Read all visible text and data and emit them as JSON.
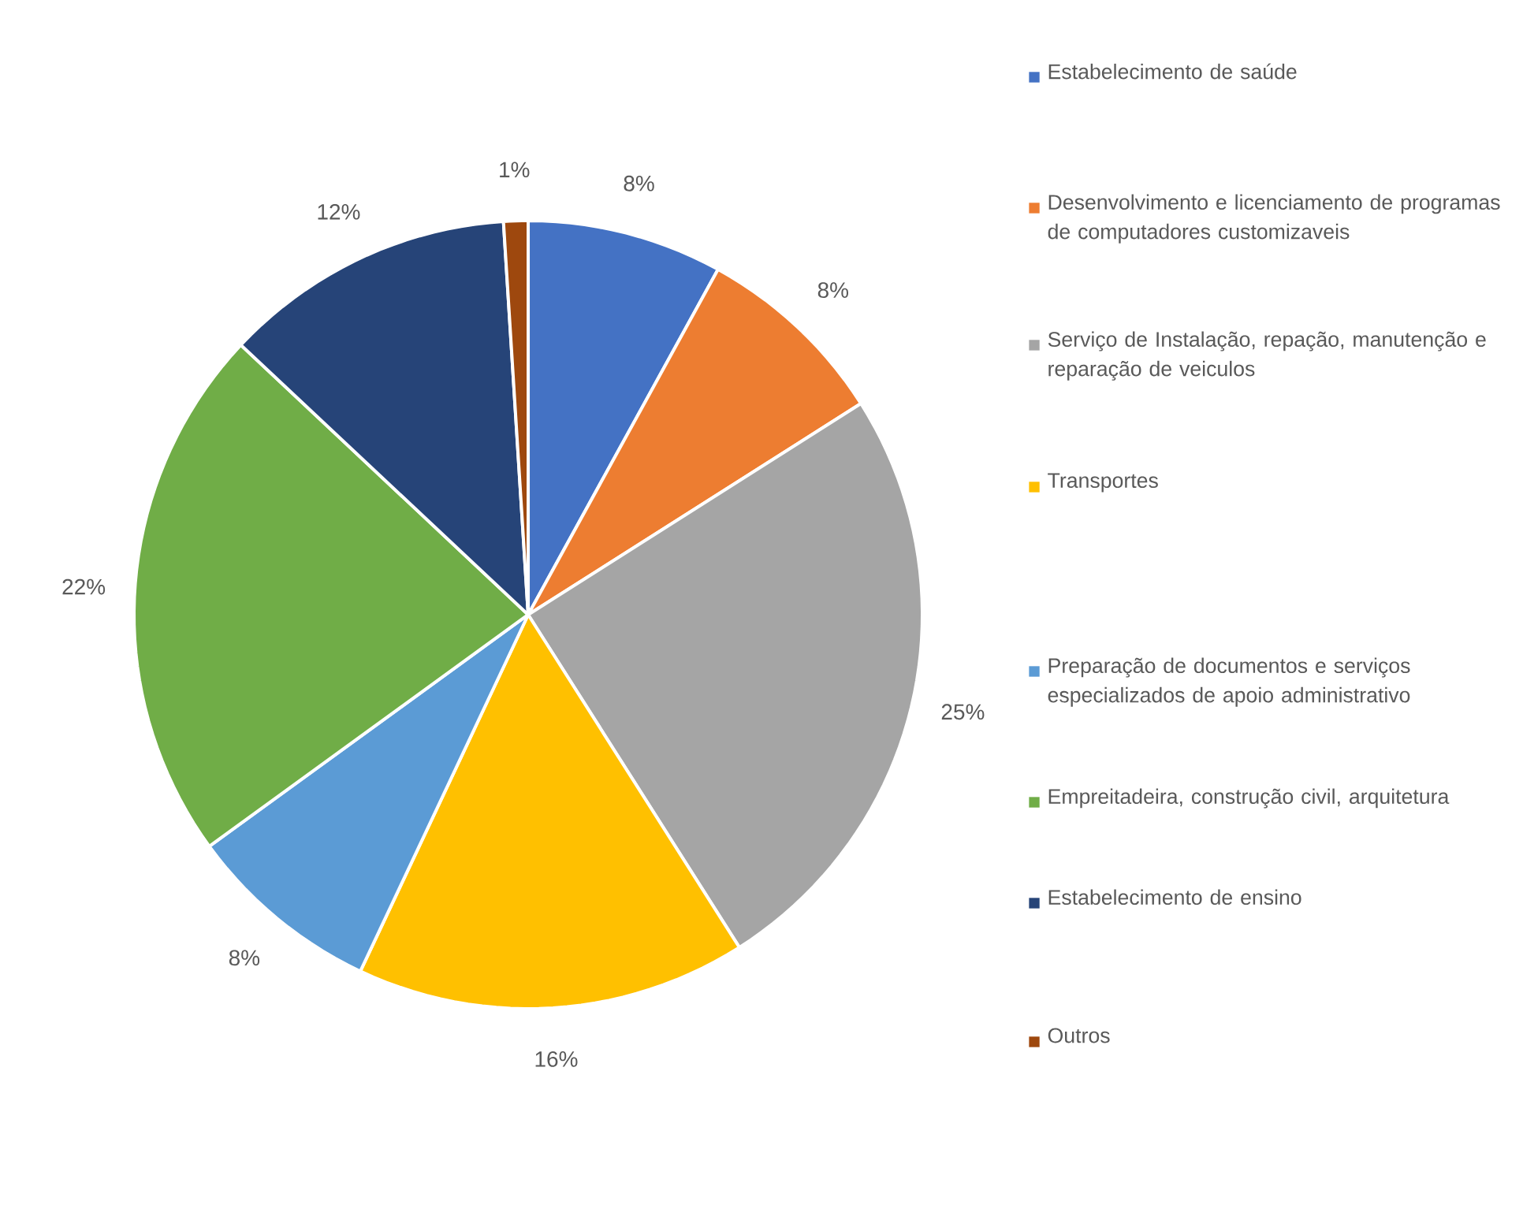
{
  "chart_data": {
    "type": "pie",
    "categories": [
      "Estabelecimento de saúde",
      "Desenvolvimento e licenciamento de programas de computadores customizaveis",
      "Serviço de Instalação, repação, manutenção e reparação de veiculos",
      "Transportes",
      "Preparação de documentos e serviços especializados de apoio administrativo",
      "Empreitadeira, construção civil, arquitetura",
      "Estabelecimento de ensino",
      "Outros"
    ],
    "values": [
      8,
      8,
      25,
      16,
      8,
      22,
      12,
      1
    ],
    "colors": [
      "#4472c4",
      "#ed7d31",
      "#a5a5a5",
      "#ffc000",
      "#5b9bd5",
      "#70ad47",
      "#264478",
      "#9e480e"
    ],
    "value_labels": [
      "8%",
      "8%",
      "25%",
      "16%",
      "8%",
      "22%",
      "12%",
      "1%"
    ],
    "legend": "right"
  }
}
